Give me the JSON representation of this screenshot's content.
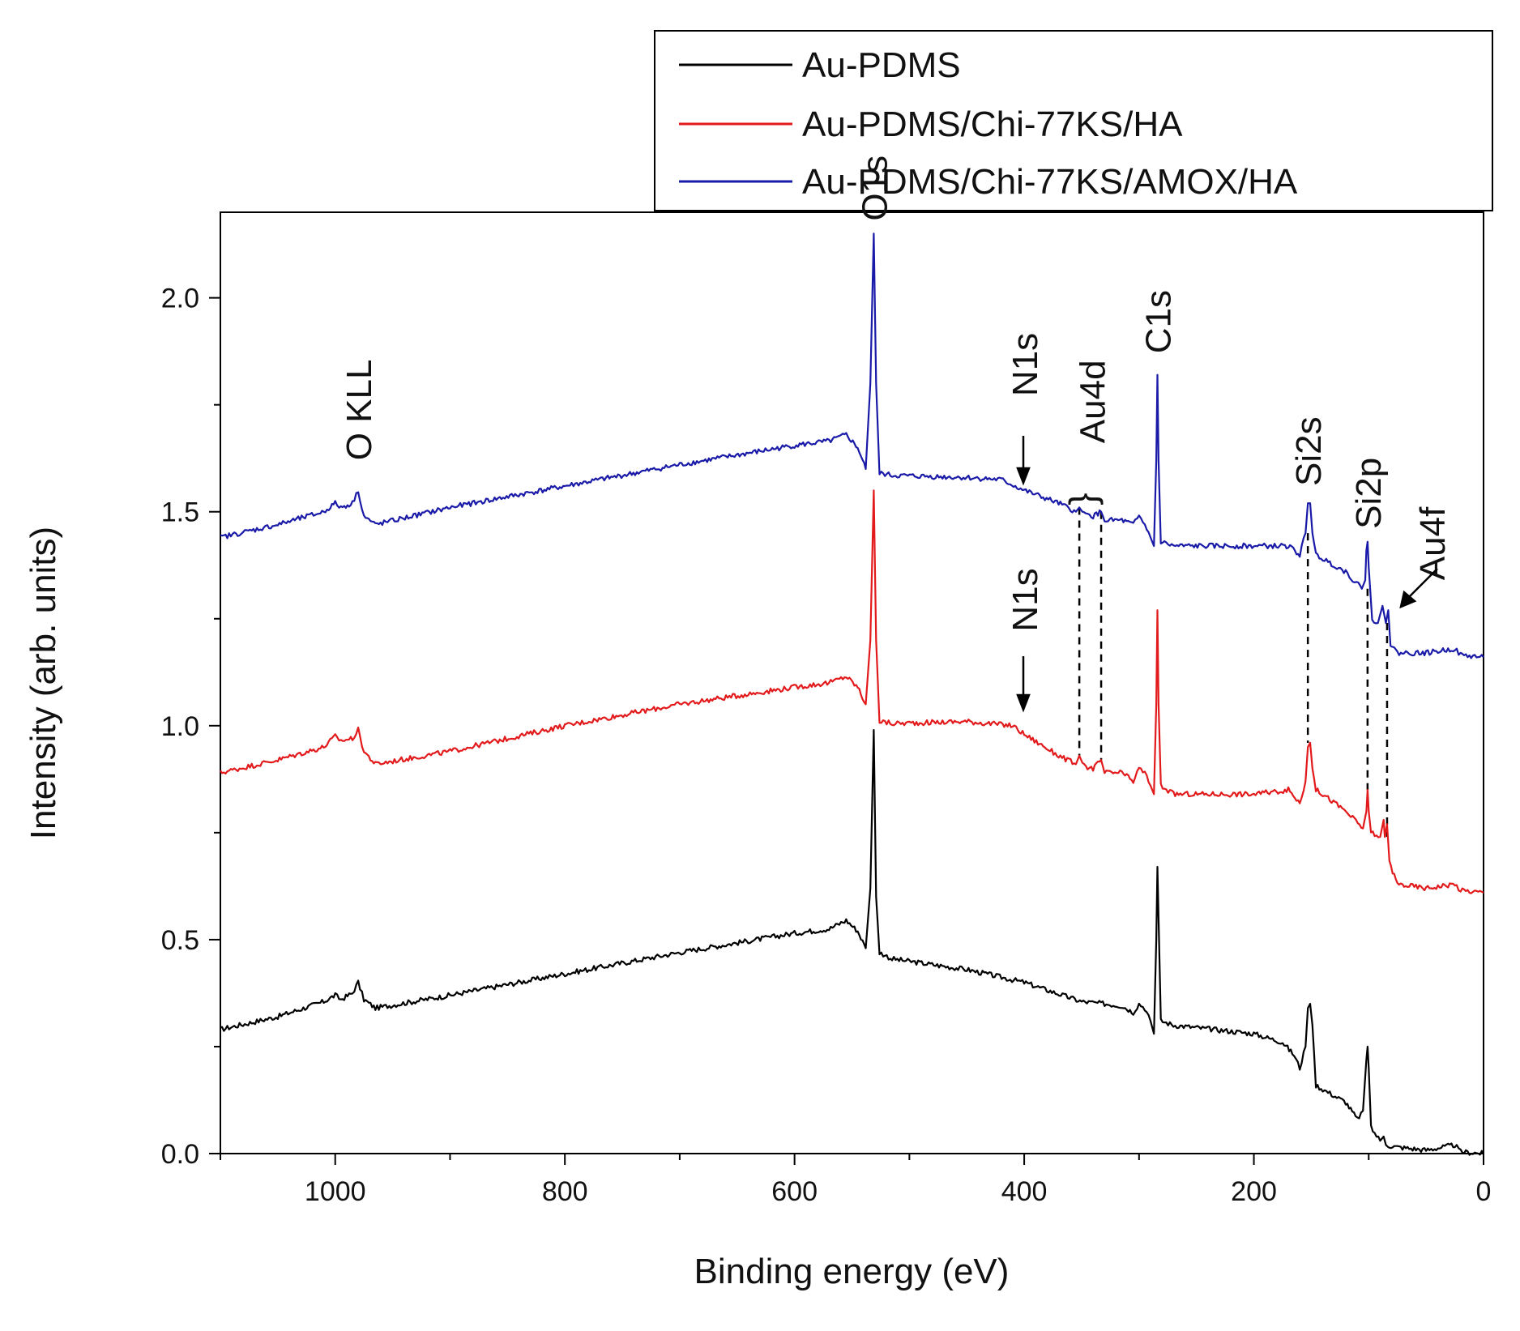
{
  "chart_data": {
    "type": "line",
    "xlabel": "Binding energy (eV)",
    "ylabel": "Intensity (arb. units)",
    "xlim": [
      1100,
      0
    ],
    "ylim": [
      0,
      2.2
    ],
    "xticks": [
      1000,
      800,
      600,
      400,
      200,
      0
    ],
    "xtick_labels": [
      "1000",
      "800",
      "600",
      "400",
      "200",
      "0"
    ],
    "yticks": [
      0.0,
      0.5,
      1.0,
      1.5,
      2.0
    ],
    "ytick_labels": [
      "0.0",
      "0.5",
      "1.0",
      "1.5",
      "2.0"
    ],
    "legend_position": "top-right",
    "series": [
      {
        "name": "Au-PDMS",
        "color": "#000000",
        "points": [
          [
            1100,
            0.29
          ],
          [
            1050,
            0.32
          ],
          [
            1010,
            0.355
          ],
          [
            1000,
            0.37
          ],
          [
            995,
            0.36
          ],
          [
            985,
            0.375
          ],
          [
            980,
            0.4
          ],
          [
            975,
            0.36
          ],
          [
            965,
            0.34
          ],
          [
            900,
            0.37
          ],
          [
            800,
            0.42
          ],
          [
            700,
            0.47
          ],
          [
            600,
            0.515
          ],
          [
            570,
            0.525
          ],
          [
            555,
            0.545
          ],
          [
            545,
            0.52
          ],
          [
            538,
            0.48
          ],
          [
            534,
            0.62
          ],
          [
            531,
            0.99
          ],
          [
            529,
            0.6
          ],
          [
            526,
            0.47
          ],
          [
            515,
            0.455
          ],
          [
            450,
            0.43
          ],
          [
            400,
            0.4
          ],
          [
            350,
            0.355
          ],
          [
            330,
            0.35
          ],
          [
            315,
            0.345
          ],
          [
            305,
            0.33
          ],
          [
            300,
            0.35
          ],
          [
            295,
            0.34
          ],
          [
            290,
            0.31
          ],
          [
            287,
            0.28
          ],
          [
            285,
            0.5
          ],
          [
            284,
            0.67
          ],
          [
            283,
            0.55
          ],
          [
            281,
            0.31
          ],
          [
            270,
            0.3
          ],
          [
            200,
            0.28
          ],
          [
            175,
            0.26
          ],
          [
            165,
            0.23
          ],
          [
            160,
            0.2
          ],
          [
            155,
            0.25
          ],
          [
            153,
            0.34
          ],
          [
            151,
            0.35
          ],
          [
            149,
            0.3
          ],
          [
            146,
            0.16
          ],
          [
            140,
            0.15
          ],
          [
            120,
            0.12
          ],
          [
            110,
            0.08
          ],
          [
            105,
            0.1
          ],
          [
            102,
            0.22
          ],
          [
            101,
            0.25
          ],
          [
            100,
            0.2
          ],
          [
            98,
            0.06
          ],
          [
            90,
            0.03
          ],
          [
            87,
            0.04
          ],
          [
            85,
            0.02
          ],
          [
            75,
            0.015
          ],
          [
            50,
            0.008
          ],
          [
            25,
            0.02
          ],
          [
            20,
            0.004
          ],
          [
            0,
            0.0
          ]
        ]
      },
      {
        "name": "Au-PDMS/Chi-77KS/HA",
        "color": "#e31a1c",
        "points": [
          [
            1100,
            0.89
          ],
          [
            1050,
            0.92
          ],
          [
            1010,
            0.95
          ],
          [
            1000,
            0.975
          ],
          [
            995,
            0.965
          ],
          [
            985,
            0.97
          ],
          [
            980,
            0.99
          ],
          [
            975,
            0.94
          ],
          [
            965,
            0.91
          ],
          [
            900,
            0.94
          ],
          [
            800,
            1.0
          ],
          [
            700,
            1.05
          ],
          [
            600,
            1.09
          ],
          [
            570,
            1.1
          ],
          [
            555,
            1.115
          ],
          [
            545,
            1.09
          ],
          [
            538,
            1.05
          ],
          [
            534,
            1.2
          ],
          [
            531,
            1.55
          ],
          [
            529,
            1.2
          ],
          [
            526,
            1.01
          ],
          [
            515,
            1.005
          ],
          [
            450,
            1.01
          ],
          [
            410,
            1.0
          ],
          [
            400,
            0.98
          ],
          [
            370,
            0.93
          ],
          [
            355,
            0.91
          ],
          [
            352,
            0.93
          ],
          [
            348,
            0.905
          ],
          [
            340,
            0.9
          ],
          [
            333,
            0.92
          ],
          [
            330,
            0.89
          ],
          [
            315,
            0.89
          ],
          [
            305,
            0.87
          ],
          [
            300,
            0.9
          ],
          [
            295,
            0.89
          ],
          [
            290,
            0.86
          ],
          [
            287,
            0.84
          ],
          [
            285,
            1.05
          ],
          [
            284,
            1.27
          ],
          [
            283,
            1.05
          ],
          [
            281,
            0.86
          ],
          [
            270,
            0.84
          ],
          [
            200,
            0.84
          ],
          [
            170,
            0.85
          ],
          [
            160,
            0.82
          ],
          [
            155,
            0.87
          ],
          [
            153,
            0.95
          ],
          [
            151,
            0.96
          ],
          [
            149,
            0.9
          ],
          [
            146,
            0.85
          ],
          [
            140,
            0.84
          ],
          [
            120,
            0.8
          ],
          [
            105,
            0.76
          ],
          [
            102,
            0.8
          ],
          [
            101,
            0.85
          ],
          [
            100,
            0.8
          ],
          [
            98,
            0.75
          ],
          [
            90,
            0.74
          ],
          [
            87,
            0.78
          ],
          [
            86,
            0.74
          ],
          [
            84,
            0.77
          ],
          [
            82,
            0.68
          ],
          [
            75,
            0.63
          ],
          [
            50,
            0.62
          ],
          [
            25,
            0.63
          ],
          [
            20,
            0.615
          ],
          [
            0,
            0.61
          ]
        ]
      },
      {
        "name": "Au-PDMS/Chi-77KS/AMOX/HA",
        "color": "#1a1aa8",
        "points": [
          [
            1100,
            1.44
          ],
          [
            1050,
            1.47
          ],
          [
            1010,
            1.5
          ],
          [
            1000,
            1.52
          ],
          [
            995,
            1.51
          ],
          [
            985,
            1.52
          ],
          [
            980,
            1.55
          ],
          [
            975,
            1.49
          ],
          [
            965,
            1.47
          ],
          [
            900,
            1.51
          ],
          [
            800,
            1.56
          ],
          [
            700,
            1.61
          ],
          [
            600,
            1.655
          ],
          [
            570,
            1.665
          ],
          [
            555,
            1.68
          ],
          [
            545,
            1.65
          ],
          [
            538,
            1.6
          ],
          [
            534,
            1.8
          ],
          [
            531,
            2.15
          ],
          [
            529,
            1.8
          ],
          [
            526,
            1.59
          ],
          [
            515,
            1.585
          ],
          [
            450,
            1.58
          ],
          [
            420,
            1.575
          ],
          [
            400,
            1.55
          ],
          [
            370,
            1.52
          ],
          [
            355,
            1.5
          ],
          [
            352,
            1.51
          ],
          [
            348,
            1.495
          ],
          [
            340,
            1.49
          ],
          [
            333,
            1.5
          ],
          [
            330,
            1.48
          ],
          [
            315,
            1.48
          ],
          [
            305,
            1.47
          ],
          [
            300,
            1.49
          ],
          [
            295,
            1.47
          ],
          [
            290,
            1.44
          ],
          [
            287,
            1.42
          ],
          [
            285,
            1.62
          ],
          [
            284,
            1.82
          ],
          [
            283,
            1.62
          ],
          [
            281,
            1.43
          ],
          [
            270,
            1.42
          ],
          [
            200,
            1.42
          ],
          [
            170,
            1.42
          ],
          [
            160,
            1.4
          ],
          [
            155,
            1.45
          ],
          [
            153,
            1.52
          ],
          [
            151,
            1.52
          ],
          [
            149,
            1.45
          ],
          [
            146,
            1.4
          ],
          [
            140,
            1.39
          ],
          [
            120,
            1.36
          ],
          [
            106,
            1.32
          ],
          [
            103,
            1.34
          ],
          [
            102,
            1.41
          ],
          [
            101,
            1.43
          ],
          [
            100,
            1.37
          ],
          [
            97,
            1.25
          ],
          [
            92,
            1.24
          ],
          [
            88,
            1.28
          ],
          [
            85,
            1.24
          ],
          [
            83,
            1.27
          ],
          [
            81,
            1.19
          ],
          [
            75,
            1.17
          ],
          [
            50,
            1.17
          ],
          [
            25,
            1.18
          ],
          [
            20,
            1.165
          ],
          [
            0,
            1.16
          ]
        ]
      }
    ],
    "annotations": [
      {
        "id": "okll",
        "text": "O KLL",
        "x": 980,
        "y": 1.62
      },
      {
        "id": "o1s",
        "text": "O1s",
        "x": 531,
        "y": 2.18
      },
      {
        "id": "n1s-top",
        "text": "N1s",
        "x": 400,
        "y": 1.77
      },
      {
        "id": "au4d",
        "text": "Au4d",
        "x": 341,
        "y": 1.66
      },
      {
        "id": "c1s",
        "text": "C1s",
        "x": 284,
        "y": 1.87
      },
      {
        "id": "si2s",
        "text": "Si2s",
        "x": 153,
        "y": 1.56
      },
      {
        "id": "si2p",
        "text": "Si2p",
        "x": 101,
        "y": 1.46
      },
      {
        "id": "n1s-mid",
        "text": "N1s",
        "x": 400,
        "y": 1.22
      },
      {
        "id": "au4f",
        "text": "Au4f",
        "x": 45,
        "y": 1.34
      }
    ]
  }
}
